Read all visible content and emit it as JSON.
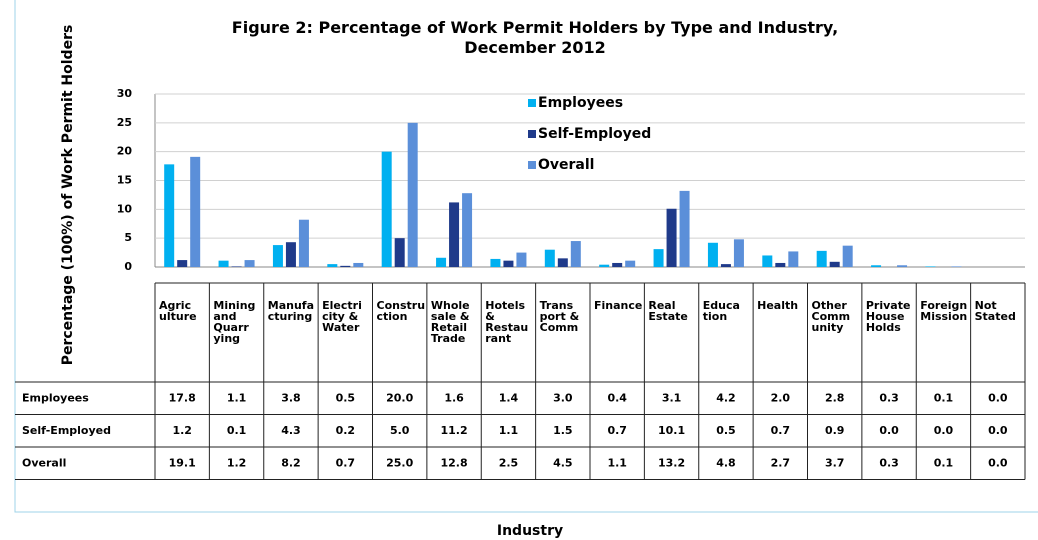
{
  "chart_data": {
    "type": "bar",
    "title": "Figure 2: Percentage of Work Permit Holders by Type and Industry,\nDecember 2012",
    "y_label": "Percentage (100%) of Work Permit Holders",
    "x_label": "Industry",
    "categories": [
      "Agric\nulture",
      "Mining\nand\nQuarr\nying",
      "Manufa\ncturing",
      "Electri\ncity &\nWater",
      "Constru\nction",
      "Whole\nsale &\nRetail\nTrade",
      "Hotels &\nRestau\nrant",
      "Trans\nport &\nComm",
      "Finance",
      "Real\nEstate",
      "Educa\ntion",
      "Health",
      "Other\nComm\nunity",
      "Private\nHouse\nHolds",
      "Foreign\nMission",
      "Not\nStated"
    ],
    "series": [
      {
        "name": "Employees",
        "color": "#00b0f0",
        "values": [
          17.8,
          1.1,
          3.8,
          0.5,
          20.0,
          1.6,
          1.4,
          3.0,
          0.4,
          3.1,
          4.2,
          2.0,
          2.8,
          0.3,
          0.1,
          0.0
        ],
        "value_labels": [
          "17.8",
          "1.1",
          "3.8",
          "0.5",
          "20.0",
          "1.6",
          "1.4",
          "3.0",
          "0.4",
          "3.1",
          "4.2",
          "2.0",
          "2.8",
          "0.3",
          "0.1",
          "0.0"
        ]
      },
      {
        "name": "Self-Employed",
        "color": "#1f3a8a",
        "values": [
          1.2,
          0.1,
          4.3,
          0.2,
          5.0,
          11.2,
          1.1,
          1.5,
          0.7,
          10.1,
          0.5,
          0.7,
          0.9,
          0.0,
          0.0,
          0.0
        ],
        "value_labels": [
          "1.2",
          "0.1",
          "4.3",
          "0.2",
          "5.0",
          "11.2",
          "1.1",
          "1.5",
          "0.7",
          "10.1",
          "0.5",
          "0.7",
          "0.9",
          "0.0",
          "0.0",
          "0.0"
        ]
      },
      {
        "name": "Overall",
        "color": "#5b8fd9",
        "values": [
          19.1,
          1.2,
          8.2,
          0.7,
          25.0,
          12.8,
          2.5,
          4.5,
          1.1,
          13.2,
          4.8,
          2.7,
          3.7,
          0.3,
          0.1,
          0.0
        ],
        "value_labels": [
          "19.1",
          "1.2",
          "8.2",
          "0.7",
          "25.0",
          "12.8",
          "2.5",
          "4.5",
          "1.1",
          "13.2",
          "4.8",
          "2.7",
          "3.7",
          "0.3",
          "0.1",
          "0.0"
        ]
      }
    ],
    "ylim": [
      0,
      30
    ],
    "yticks": [
      0,
      5,
      10,
      15,
      20,
      25,
      30
    ],
    "grid": true,
    "legend": "top"
  }
}
